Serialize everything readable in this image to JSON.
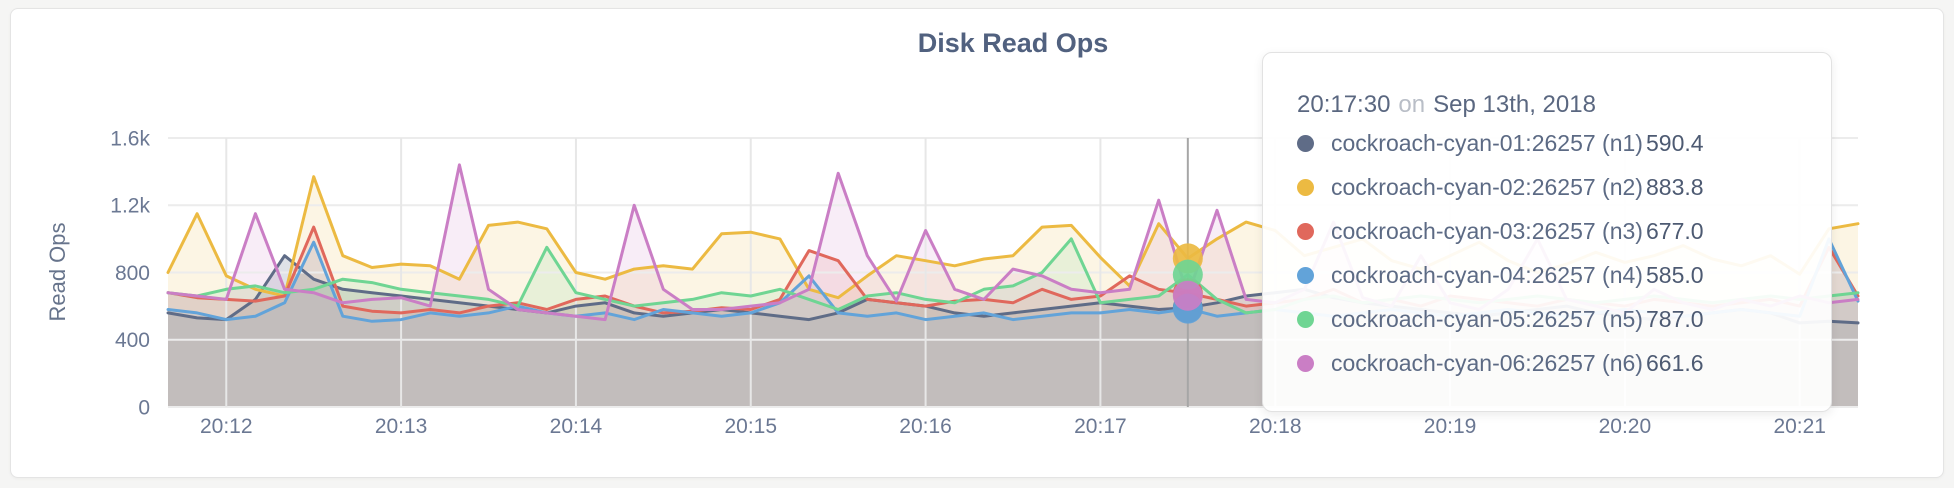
{
  "page": {
    "background": "#f5f5f4",
    "card_background": "#ffffff",
    "card_border": "#e4e4e4"
  },
  "chart_data": {
    "type": "line",
    "title": "Disk Read Ops",
    "xlabel": "",
    "ylabel": "Read Ops",
    "ylim": [
      0,
      1600
    ],
    "grid": true,
    "legend_position": "none",
    "x_start_time": "20:11:40",
    "x_step_seconds": 10,
    "x_tick_labels": [
      "20:12",
      "20:13",
      "20:14",
      "20:15",
      "20:16",
      "20:17",
      "20:18",
      "20:19",
      "20:20",
      "20:21"
    ],
    "x_tick_offsets_seconds": [
      20,
      80,
      140,
      200,
      260,
      320,
      380,
      440,
      500,
      560
    ],
    "y_ticks": [
      {
        "value": 0,
        "label": "0"
      },
      {
        "value": 400,
        "label": "400"
      },
      {
        "value": 800,
        "label": "800"
      },
      {
        "value": 1200,
        "label": "1.2k"
      },
      {
        "value": 1600,
        "label": "1.6k"
      }
    ],
    "series": [
      {
        "name": "cockroach-cyan-01:26257 (n1)",
        "color": "#5f6c87",
        "values": [
          560,
          530,
          520,
          640,
          900,
          760,
          700,
          680,
          660,
          640,
          620,
          600,
          580,
          560,
          600,
          620,
          560,
          540,
          560,
          580,
          560,
          540,
          520,
          560,
          640,
          620,
          600,
          560,
          540,
          560,
          580,
          600,
          620,
          600,
          580,
          590.4,
          620,
          660,
          680,
          700,
          650,
          620,
          600,
          580,
          560,
          540,
          560,
          580,
          600,
          560,
          540,
          520,
          540,
          560,
          580,
          560,
          500,
          510,
          500
        ]
      },
      {
        "name": "cockroach-cyan-02:26257 (n2)",
        "color": "#ecba42",
        "values": [
          800,
          1150,
          780,
          700,
          660,
          1370,
          900,
          830,
          850,
          840,
          760,
          1080,
          1100,
          1060,
          800,
          760,
          820,
          840,
          820,
          1030,
          1040,
          1000,
          700,
          650,
          780,
          900,
          870,
          840,
          880,
          900,
          1070,
          1080,
          890,
          720,
          1090,
          883.8,
          1000,
          1100,
          1050,
          900,
          950,
          1000,
          870,
          820,
          900,
          980,
          870,
          800,
          850,
          920,
          860,
          900,
          960,
          880,
          840,
          900,
          790,
          1060,
          1090
        ]
      },
      {
        "name": "cockroach-cyan-03:26257 (n3)",
        "color": "#e0685c",
        "values": [
          680,
          650,
          640,
          630,
          660,
          1070,
          600,
          570,
          560,
          580,
          560,
          600,
          620,
          580,
          640,
          660,
          600,
          560,
          570,
          590,
          580,
          640,
          930,
          870,
          640,
          620,
          600,
          630,
          640,
          620,
          700,
          640,
          660,
          780,
          700,
          677.0,
          640,
          600,
          620,
          640,
          700,
          620,
          640,
          600,
          660,
          640,
          620,
          600,
          640,
          620,
          600,
          640,
          620,
          600,
          620,
          640,
          600,
          950,
          660
        ]
      },
      {
        "name": "cockroach-cyan-04:26257 (n4)",
        "color": "#62a3d9",
        "values": [
          580,
          560,
          520,
          540,
          620,
          980,
          540,
          510,
          520,
          560,
          540,
          560,
          600,
          560,
          540,
          560,
          520,
          580,
          560,
          540,
          560,
          620,
          780,
          560,
          540,
          560,
          520,
          540,
          560,
          520,
          540,
          560,
          560,
          580,
          560,
          585.0,
          540,
          560,
          580,
          560,
          540,
          560,
          580,
          560,
          540,
          560,
          580,
          560,
          540,
          560,
          580,
          560,
          540,
          560,
          580,
          560,
          540,
          1000,
          630
        ]
      },
      {
        "name": "cockroach-cyan-05:26257 (n5)",
        "color": "#6fd593",
        "values": [
          680,
          660,
          700,
          720,
          680,
          700,
          760,
          740,
          700,
          680,
          660,
          640,
          600,
          950,
          680,
          640,
          600,
          620,
          640,
          680,
          660,
          700,
          640,
          580,
          660,
          680,
          640,
          620,
          700,
          720,
          800,
          1000,
          620,
          640,
          660,
          787.0,
          640,
          560,
          580,
          640,
          660,
          620,
          640,
          660,
          640,
          620,
          640,
          660,
          640,
          620,
          640,
          660,
          640,
          620,
          640,
          660,
          640,
          660,
          680
        ]
      },
      {
        "name": "cockroach-cyan-06:26257 (n6)",
        "color": "#ca7ec5",
        "values": [
          680,
          660,
          640,
          1150,
          700,
          680,
          620,
          640,
          650,
          600,
          1440,
          700,
          580,
          560,
          540,
          520,
          1200,
          700,
          580,
          580,
          600,
          620,
          700,
          1390,
          900,
          630,
          1050,
          700,
          640,
          820,
          780,
          700,
          680,
          700,
          1230,
          661.6,
          1170,
          640,
          620,
          700,
          1100,
          650,
          600,
          900,
          620,
          580,
          700,
          1000,
          640,
          600,
          560,
          700,
          620,
          580,
          640,
          600,
          660,
          620,
          640
        ]
      }
    ],
    "hover": {
      "time": "20:17:30",
      "index": 35,
      "offset_seconds": 350,
      "line_color": "#a6a6a6"
    }
  },
  "tooltip": {
    "time": "20:17:30",
    "connector": "on",
    "date": "Sep 13th, 2018",
    "rows": [
      {
        "name": "cockroach-cyan-01:26257 (n1)",
        "value": "590.4",
        "color": "#5f6c87"
      },
      {
        "name": "cockroach-cyan-02:26257 (n2)",
        "value": "883.8",
        "color": "#ecba42"
      },
      {
        "name": "cockroach-cyan-03:26257 (n3)",
        "value": "677.0",
        "color": "#e0685c"
      },
      {
        "name": "cockroach-cyan-04:26257 (n4)",
        "value": "585.0",
        "color": "#62a3d9"
      },
      {
        "name": "cockroach-cyan-05:26257 (n5)",
        "value": "787.0",
        "color": "#6fd593"
      },
      {
        "name": "cockroach-cyan-06:26257 (n6)",
        "value": "661.6",
        "color": "#ca7ec5"
      }
    ]
  }
}
